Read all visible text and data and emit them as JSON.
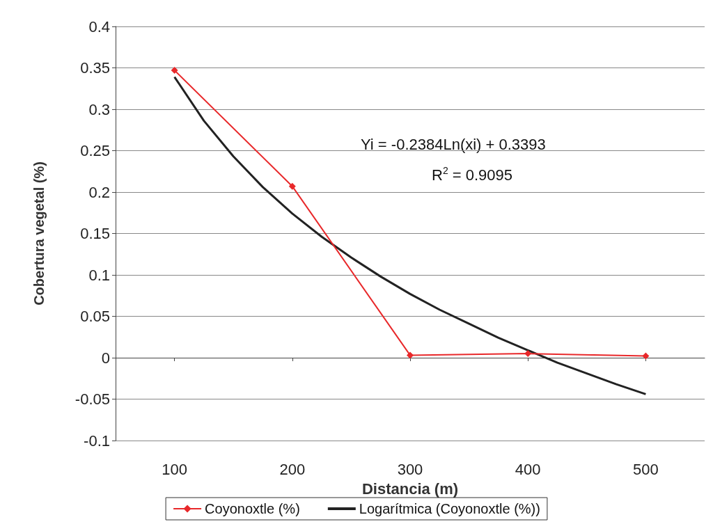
{
  "chart_data": {
    "type": "line",
    "xlabel": "Distancia (m)",
    "ylabel": "Cobertura vegetal (%)",
    "xlim": [
      50,
      550
    ],
    "xticks": [
      100,
      200,
      300,
      400,
      500
    ],
    "ylim": [
      -0.1,
      0.4
    ],
    "yticks": [
      -0.1,
      -0.05,
      0,
      0.05,
      0.1,
      0.15,
      0.2,
      0.25,
      0.3,
      0.35,
      0.4
    ],
    "grid": "y",
    "legend": "bottom",
    "series": [
      {
        "name": "Coyonoxtle (%)",
        "color": "#e8282a",
        "marker": "diamond",
        "x": [
          100,
          200,
          300,
          400,
          500
        ],
        "values": [
          0.347,
          0.207,
          0.003,
          0.005,
          0.002
        ]
      },
      {
        "name": "Logarítmica (Coyonoxtle (%))",
        "color": "#222222",
        "marker": "none",
        "x": [
          100,
          125,
          150,
          175,
          200,
          225,
          250,
          275,
          300,
          325,
          350,
          375,
          400,
          425,
          450,
          475,
          500
        ],
        "values": [
          0.339,
          0.286,
          0.243,
          0.206,
          0.174,
          0.146,
          0.121,
          0.098,
          0.077,
          0.058,
          0.041,
          0.024,
          0.009,
          -0.006,
          -0.019,
          -0.032,
          -0.044
        ]
      }
    ],
    "annotations": [
      "Yi = -0.2384Ln(xi) + 0.3393",
      "R$^{2}$ = 0.9095"
    ]
  }
}
